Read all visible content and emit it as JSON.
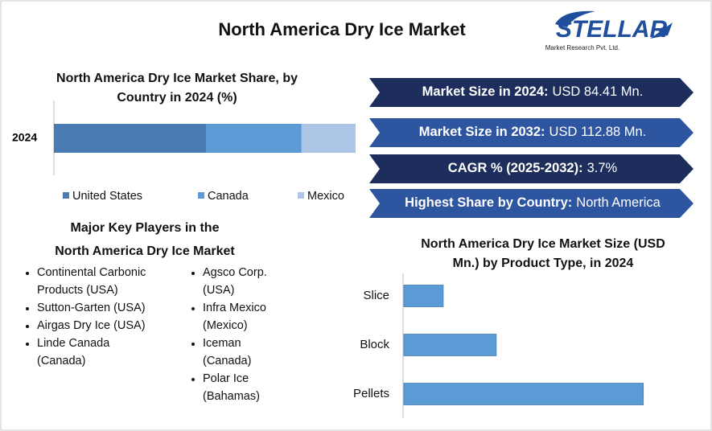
{
  "title": "North America Dry Ice Market",
  "logo": {
    "name": "STELLAR",
    "tagline": "Market Research Pvt. Ltd."
  },
  "chart_data": [
    {
      "type": "stacked-bar",
      "orientation": "horizontal",
      "title": "North America Dry Ice Market Share, by Country in 2024 (%)",
      "categories": [
        "2024"
      ],
      "xlim": [
        0,
        100
      ],
      "series": [
        {
          "name": "United States",
          "color": "#4a7cb2",
          "values": [
            50.4
          ]
        },
        {
          "name": "Canada",
          "color": "#5b9bd5",
          "values": [
            31.7
          ]
        },
        {
          "name": "Mexico",
          "color": "#aec6e6",
          "values": [
            17.9
          ]
        }
      ],
      "legend": "bottom"
    },
    {
      "type": "bar",
      "orientation": "horizontal",
      "title": "North America Dry Ice Market Size (USD Mn.) by Product Type, in 2024",
      "categories": [
        "Slice",
        "Block",
        "Pellets"
      ],
      "values": [
        8.95,
        21.0,
        54.45
      ],
      "color": "#5b9bd5",
      "xlim": [
        0,
        60
      ]
    }
  ],
  "highlights": [
    {
      "label": "Market Size in 2024:",
      "value": "USD 84.41 Mn."
    },
    {
      "label": "Market Size in 2032:",
      "value": "USD 112.88 Mn."
    },
    {
      "label": "CAGR % (2025-2032):",
      "value": "3.7%"
    },
    {
      "label": "Highest Share by Country:",
      "value": "North America"
    }
  ],
  "key_players": {
    "title": "Major Key Players in the North America Dry Ice Market",
    "columns": [
      [
        "Continental Carbonic Products (USA)",
        "Sutton-Garten (USA)",
        "Airgas Dry Ice (USA)",
        "Linde Canada (Canada)"
      ],
      [
        "Agsco Corp. (USA)",
        "Infra Mexico (Mexico)",
        "Iceman (Canada)",
        "Polar Ice (Bahamas)"
      ]
    ]
  }
}
